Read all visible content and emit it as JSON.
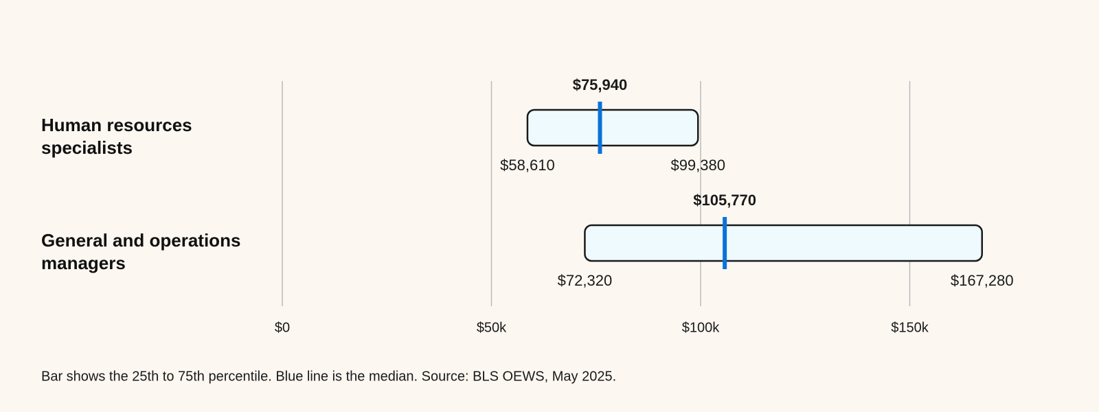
{
  "chart_data": {
    "type": "range",
    "categories": [
      "Human resources specialists",
      "General and operations managers"
    ],
    "series": [
      {
        "values": [
          58610,
          72320
        ],
        "value_labels": [
          "$58,610",
          "$72,320"
        ]
      },
      {
        "values": [
          75940,
          105770
        ],
        "value_labels": [
          "$75,940",
          "$105,770"
        ],
        "color": "#0a72d8"
      },
      {
        "values": [
          99380,
          167280
        ],
        "value_labels": [
          "$99,380",
          "$167,280"
        ]
      }
    ],
    "box_fill": "#eefafd",
    "box_stroke": "#1a1a1a",
    "xlim": [
      0,
      175000
    ],
    "xticks": [
      {
        "value": 0,
        "label": "$0"
      },
      {
        "value": 50000,
        "label": "$50k"
      },
      {
        "value": 100000,
        "label": "$100k"
      },
      {
        "value": 150000,
        "label": "$150k"
      }
    ],
    "grid": true,
    "note": "Bar shows the 25th to 75th percentile. Blue line is the median. Source: BLS OEWS, May 2025."
  }
}
